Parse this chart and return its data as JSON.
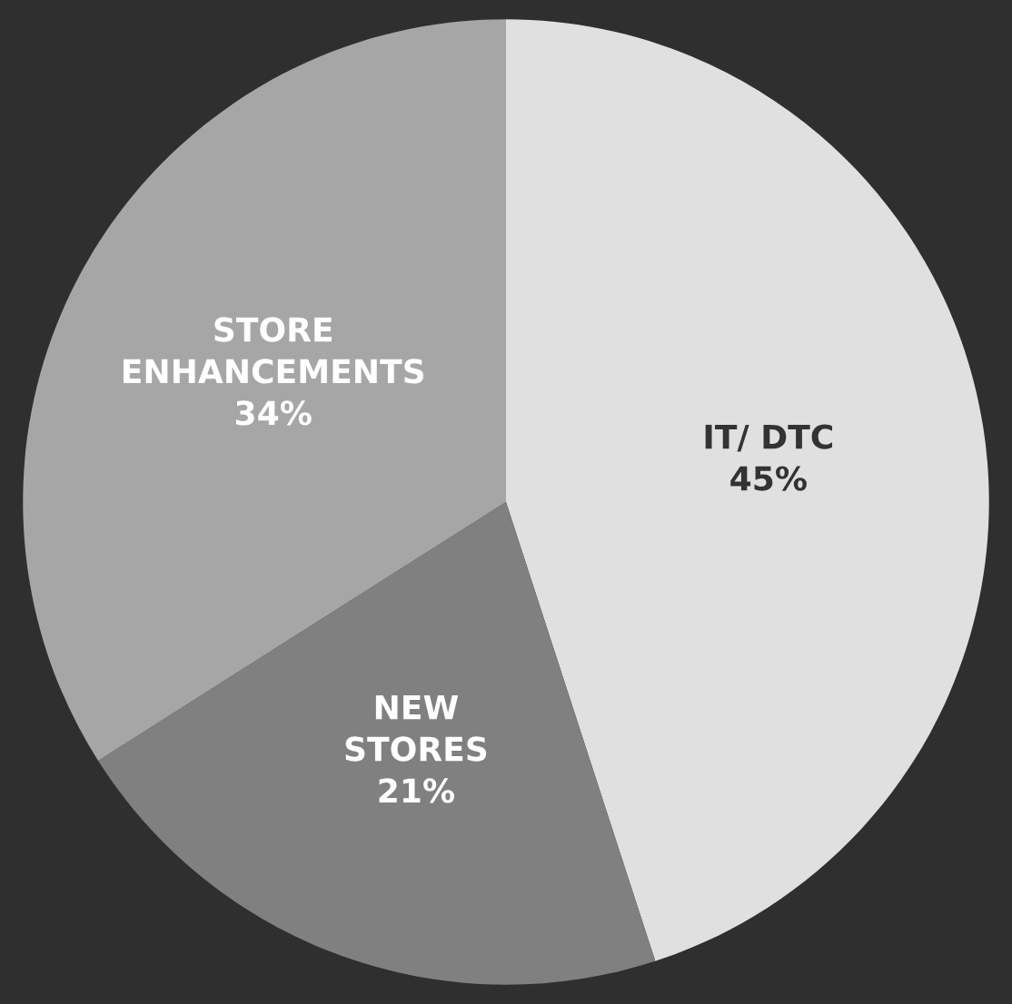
{
  "chart_data": {
    "type": "pie",
    "categories": [
      "IT/ DTC",
      "NEW\nSTORES",
      "STORE\nENHANCEMENTS"
    ],
    "values": [
      45,
      21,
      34
    ],
    "colors": [
      "#e0e0e0",
      "#808080",
      "#a6a6a6"
    ],
    "value_labels": [
      "45%",
      "21%",
      "34%"
    ]
  }
}
